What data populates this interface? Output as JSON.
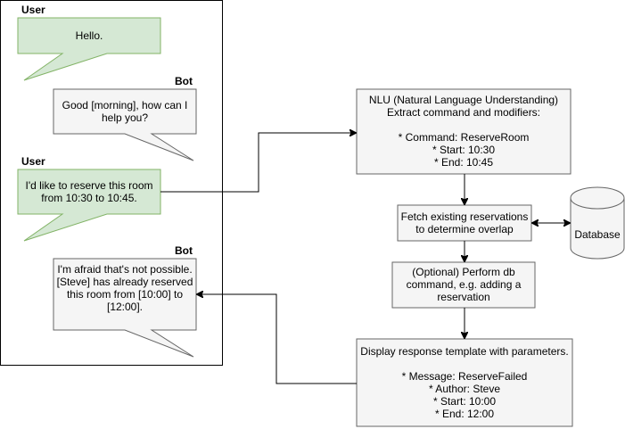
{
  "chat": {
    "speaker_user_1": "User",
    "message_user_1": [
      "Hello."
    ],
    "speaker_bot_1": "Bot",
    "message_bot_1": [
      "Good [morning], how can I",
      "help you?"
    ],
    "speaker_user_2": "User",
    "message_user_2": [
      "I'd like to reserve this room",
      "from 10:30 to 10:45."
    ],
    "speaker_bot_2": "Bot",
    "message_bot_2": [
      "I'm afraid that's not possible.",
      "[Steve] has already reserved",
      "this room from [10:00] to",
      "[12:00]."
    ]
  },
  "flow": {
    "nlu": [
      "NLU (Natural Language Understanding)",
      "Extract command and modifiers:",
      "",
      "* Command: ReserveRoom",
      "* Start: 10:30",
      "* End: 10:45"
    ],
    "fetch": [
      "Fetch existing reservations",
      "to determine overlap"
    ],
    "database": [
      "Database"
    ],
    "db_command": [
      "(Optional) Perform db",
      "command, e.g. adding a",
      "reservation"
    ],
    "response": [
      "Display response template with parameters.",
      "",
      "* Message: ReserveFailed",
      "* Author: Steve",
      "* Start: 10:00",
      "* End: 12:00"
    ]
  },
  "colors": {
    "user_bubble_fill": "#d5e8d4",
    "user_bubble_stroke": "#82b366",
    "bot_bubble_fill": "#f5f5f5",
    "bot_bubble_stroke": "#666666"
  }
}
